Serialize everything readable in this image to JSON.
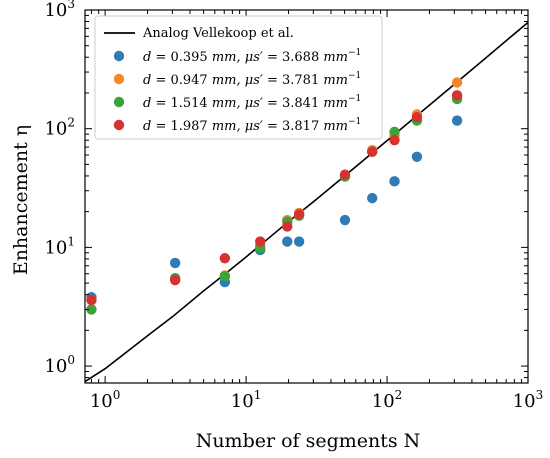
{
  "chart_data": {
    "type": "scatter",
    "xlabel": "Number of segments N",
    "ylabel": "Enhancement η",
    "xscale": "log",
    "yscale": "log",
    "xlim": [
      0.72,
      1000
    ],
    "ylim": [
      0.72,
      1000
    ],
    "x_ticks": [
      {
        "base": "10",
        "exp": "0",
        "value": 1
      },
      {
        "base": "10",
        "exp": "1",
        "value": 10
      },
      {
        "base": "10",
        "exp": "2",
        "value": 100
      },
      {
        "base": "10",
        "exp": "3",
        "value": 1000
      }
    ],
    "y_ticks": [
      {
        "base": "10",
        "exp": "0",
        "value": 1
      },
      {
        "base": "10",
        "exp": "1",
        "value": 10
      },
      {
        "base": "10",
        "exp": "2",
        "value": 100
      },
      {
        "base": "10",
        "exp": "3",
        "value": 1000
      }
    ],
    "legend_position": "top-left",
    "line": {
      "name": "Analog Vellekoop et al.",
      "color": "#000000",
      "x": [
        0.72,
        1,
        2,
        3,
        5,
        7,
        10,
        20,
        30,
        50,
        80,
        100,
        150,
        200,
        300,
        500,
        700,
        1000
      ],
      "y": [
        0.74,
        0.95,
        1.8,
        2.6,
        4.3,
        5.9,
        8.3,
        16.5,
        24.2,
        39.9,
        63.6,
        79.3,
        118.6,
        157.9,
        236.4,
        393.5,
        550.6,
        786.1
      ]
    },
    "series": [
      {
        "name": "d = 0.395 mm, μs′ = 3.688 mm⁻¹",
        "color": "#2f7bb6",
        "x": [
          0.8,
          3.14,
          7.07,
          12.6,
          19.6,
          23.8,
          50.3,
          78.5,
          113,
          163,
          314
        ],
        "y": [
          3.8,
          7.4,
          5.1,
          9.5,
          11.2,
          11.2,
          17,
          26,
          36,
          58,
          117
        ]
      },
      {
        "name": "d = 0.947 mm, μs′ = 3.781 mm⁻¹",
        "color": "#f5892a",
        "x": [
          0.8,
          3.14,
          7.07,
          12.6,
          19.6,
          23.8,
          50.3,
          78.5,
          113,
          163,
          314
        ],
        "y": [
          3.6,
          5.5,
          5.8,
          10.4,
          17,
          19.5,
          40,
          66,
          87,
          132,
          245
        ]
      },
      {
        "name": "d = 1.514 mm, μs′ = 3.841 mm⁻¹",
        "color": "#3aa33a",
        "x": [
          0.8,
          3.14,
          7.07,
          12.6,
          19.6,
          23.8,
          50.3,
          78.5,
          113,
          163,
          314
        ],
        "y": [
          3,
          5.5,
          5.7,
          9.9,
          16.5,
          18.5,
          39.5,
          64,
          94,
          117,
          178
        ]
      },
      {
        "name": "d = 1.987 mm, μs′ = 3.817 mm⁻¹",
        "color": "#d73232",
        "x": [
          0.8,
          3.14,
          7.07,
          12.6,
          19.6,
          23.8,
          50.3,
          78.5,
          113,
          163,
          314
        ],
        "y": [
          3.6,
          5.3,
          8.1,
          11.2,
          15,
          19,
          41,
          64,
          80,
          125,
          191
        ]
      }
    ],
    "legend": {
      "line_label": "Analog Vellekoop et al.",
      "entries": [
        {
          "d": "0.395",
          "mu": "3.688"
        },
        {
          "d": "0.947",
          "mu": "3.781"
        },
        {
          "d": "1.514",
          "mu": "3.841"
        },
        {
          "d": "1.987",
          "mu": "3.817"
        }
      ],
      "d_prefix": "d = ",
      "unit_mm": "mm",
      "mu_symbol": "μs′ = ",
      "unit_inv": "mm",
      "unit_inv_exp": "−1"
    }
  }
}
